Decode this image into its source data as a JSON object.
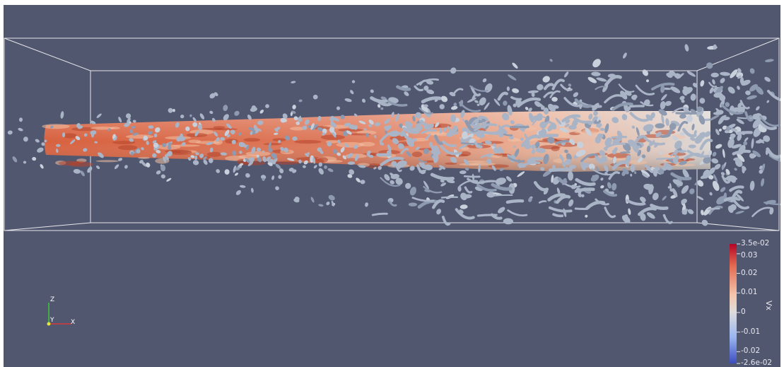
{
  "viewport": {
    "background": "#525770"
  },
  "color_legend": {
    "title": "Vx",
    "range_min": -0.026,
    "range_max": 0.035,
    "labels": [
      {
        "text": "3.5e-02",
        "value": 0.035
      },
      {
        "text": "0.03",
        "value": 0.03
      },
      {
        "text": "0.02",
        "value": 0.02
      },
      {
        "text": "0.01",
        "value": 0.01
      },
      {
        "text": "0",
        "value": 0
      },
      {
        "text": "-0.01",
        "value": -0.01
      },
      {
        "text": "-0.02",
        "value": -0.02
      },
      {
        "text": "-2.6e-02",
        "value": -0.026
      }
    ],
    "colors": {
      "max": "#b40426",
      "mid": "#dddcdc",
      "min": "#3b4cc0"
    }
  },
  "orientation_axes": {
    "z": {
      "label": "Z",
      "color": "#3ec93e"
    },
    "x": {
      "label": "X",
      "color": "#d23a3a"
    },
    "y": {
      "label": "Y",
      "color": "#e6e63a"
    }
  },
  "colors": {
    "bounding_box": "#e6e6ea",
    "jet_core": "#d9694a",
    "jet_light": "#f0c5a8",
    "vortex_blobs": "#aab6c8"
  }
}
